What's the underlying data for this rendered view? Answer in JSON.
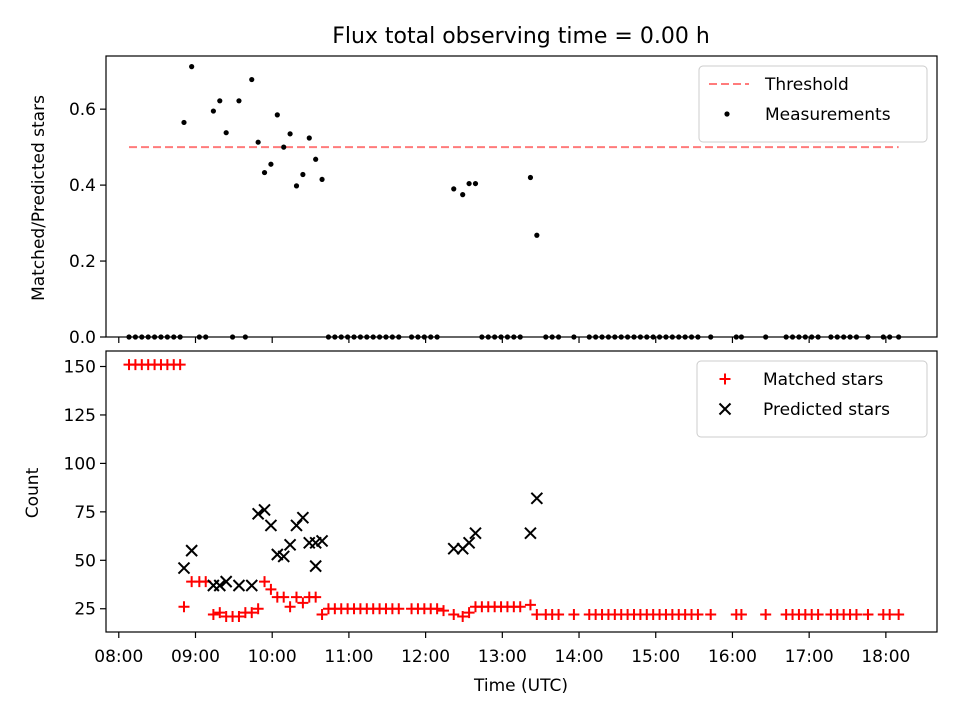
{
  "chart_data": [
    {
      "type": "scatter",
      "title": "Flux total observing time = 0.00 h",
      "xlabel": "",
      "ylabel": "Matched/Predicted stars",
      "x_ticks": [
        "08:00",
        "09:00",
        "10:00",
        "11:00",
        "12:00",
        "13:00",
        "14:00",
        "15:00",
        "16:00",
        "17:00",
        "18:00"
      ],
      "y_ticks": [
        "0.0",
        "0.2",
        "0.4",
        "0.6"
      ],
      "ylim": [
        0,
        0.74
      ],
      "xlim": [
        "07:50",
        "18:40"
      ],
      "grid": false,
      "legend_position": "upper-right",
      "threshold": {
        "name": "Threshold",
        "value": 0.5,
        "x_start": "08:08",
        "x_end": "18:10",
        "color": "#ff7b7b",
        "style": "dashed"
      },
      "series": [
        {
          "name": "Measurements",
          "color": "#000000",
          "marker": "dot",
          "points": [
            [
              "08:51",
              0.565
            ],
            [
              "08:57",
              0.712
            ],
            [
              "09:14",
              0.595
            ],
            [
              "09:19",
              0.622
            ],
            [
              "09:24",
              0.538
            ],
            [
              "09:34",
              0.622
            ],
            [
              "09:44",
              0.678
            ],
            [
              "09:49",
              0.513
            ],
            [
              "09:54",
              0.433
            ],
            [
              "09:59",
              0.455
            ],
            [
              "10:04",
              0.585
            ],
            [
              "10:09",
              0.5
            ],
            [
              "10:14",
              0.535
            ],
            [
              "10:19",
              0.398
            ],
            [
              "10:24",
              0.428
            ],
            [
              "10:29",
              0.524
            ],
            [
              "10:34",
              0.468
            ],
            [
              "10:39",
              0.415
            ],
            [
              "12:22",
              0.39
            ],
            [
              "12:29",
              0.375
            ],
            [
              "12:34",
              0.404
            ],
            [
              "12:39",
              0.404
            ],
            [
              "13:22",
              0.42
            ],
            [
              "13:27",
              0.268
            ],
            [
              "08:08",
              0
            ],
            [
              "08:13",
              0
            ],
            [
              "08:18",
              0
            ],
            [
              "08:23",
              0
            ],
            [
              "08:28",
              0
            ],
            [
              "08:33",
              0
            ],
            [
              "08:38",
              0
            ],
            [
              "08:43",
              0
            ],
            [
              "08:48",
              0
            ],
            [
              "09:03",
              0
            ],
            [
              "09:08",
              0
            ],
            [
              "09:29",
              0
            ],
            [
              "09:39",
              0
            ],
            [
              "10:44",
              0
            ],
            [
              "10:49",
              0
            ],
            [
              "10:54",
              0
            ],
            [
              "10:59",
              0
            ],
            [
              "11:04",
              0
            ],
            [
              "11:09",
              0
            ],
            [
              "11:14",
              0
            ],
            [
              "11:19",
              0
            ],
            [
              "11:24",
              0
            ],
            [
              "11:29",
              0
            ],
            [
              "11:34",
              0
            ],
            [
              "11:39",
              0
            ],
            [
              "11:49",
              0
            ],
            [
              "11:54",
              0
            ],
            [
              "11:59",
              0
            ],
            [
              "12:04",
              0
            ],
            [
              "12:09",
              0
            ],
            [
              "12:44",
              0
            ],
            [
              "12:49",
              0
            ],
            [
              "12:54",
              0
            ],
            [
              "12:59",
              0
            ],
            [
              "13:04",
              0
            ],
            [
              "13:09",
              0
            ],
            [
              "13:14",
              0
            ],
            [
              "13:34",
              0
            ],
            [
              "13:39",
              0
            ],
            [
              "13:44",
              0
            ],
            [
              "13:56",
              0
            ],
            [
              "14:08",
              0
            ],
            [
              "14:13",
              0
            ],
            [
              "14:18",
              0
            ],
            [
              "14:23",
              0
            ],
            [
              "14:28",
              0
            ],
            [
              "14:33",
              0
            ],
            [
              "14:38",
              0
            ],
            [
              "14:43",
              0
            ],
            [
              "14:48",
              0
            ],
            [
              "14:53",
              0
            ],
            [
              "14:58",
              0
            ],
            [
              "15:03",
              0
            ],
            [
              "15:08",
              0
            ],
            [
              "15:13",
              0
            ],
            [
              "15:18",
              0
            ],
            [
              "15:23",
              0
            ],
            [
              "15:28",
              0
            ],
            [
              "15:33",
              0
            ],
            [
              "15:43",
              0
            ],
            [
              "16:03",
              0
            ],
            [
              "16:07",
              0
            ],
            [
              "16:26",
              0
            ],
            [
              "16:42",
              0
            ],
            [
              "16:47",
              0
            ],
            [
              "16:52",
              0
            ],
            [
              "16:57",
              0
            ],
            [
              "17:02",
              0
            ],
            [
              "17:07",
              0
            ],
            [
              "17:17",
              0
            ],
            [
              "17:22",
              0
            ],
            [
              "17:27",
              0
            ],
            [
              "17:32",
              0
            ],
            [
              "17:37",
              0
            ],
            [
              "17:46",
              0
            ],
            [
              "17:58",
              0
            ],
            [
              "18:03",
              0
            ],
            [
              "18:10",
              0
            ]
          ]
        }
      ]
    },
    {
      "type": "scatter",
      "title": "",
      "xlabel": "Time (UTC)",
      "ylabel": "Count",
      "x_ticks": [
        "08:00",
        "09:00",
        "10:00",
        "11:00",
        "12:00",
        "13:00",
        "14:00",
        "15:00",
        "16:00",
        "17:00",
        "18:00"
      ],
      "y_ticks": [
        "25",
        "50",
        "75",
        "100",
        "125",
        "150"
      ],
      "ylim": [
        13,
        158
      ],
      "xlim": [
        "07:50",
        "18:40"
      ],
      "grid": false,
      "legend_position": "upper-right",
      "series": [
        {
          "name": "Matched stars",
          "color": "#ff0000",
          "marker": "plus",
          "points": [
            [
              "08:08",
              151
            ],
            [
              "08:13",
              151
            ],
            [
              "08:18",
              151
            ],
            [
              "08:23",
              151
            ],
            [
              "08:28",
              151
            ],
            [
              "08:33",
              151
            ],
            [
              "08:38",
              151
            ],
            [
              "08:43",
              151
            ],
            [
              "08:48",
              151
            ],
            [
              "08:51",
              26
            ],
            [
              "08:57",
              39
            ],
            [
              "09:03",
              39
            ],
            [
              "09:08",
              39
            ],
            [
              "09:14",
              22
            ],
            [
              "09:19",
              23
            ],
            [
              "09:24",
              21
            ],
            [
              "09:29",
              21
            ],
            [
              "09:34",
              21
            ],
            [
              "09:39",
              23
            ],
            [
              "09:44",
              23
            ],
            [
              "09:49",
              25
            ],
            [
              "09:54",
              39
            ],
            [
              "09:59",
              35
            ],
            [
              "10:04",
              31
            ],
            [
              "10:09",
              31
            ],
            [
              "10:14",
              26
            ],
            [
              "10:19",
              31
            ],
            [
              "10:24",
              28
            ],
            [
              "10:29",
              31
            ],
            [
              "10:34",
              31
            ],
            [
              "10:39",
              22
            ],
            [
              "10:44",
              25
            ],
            [
              "10:49",
              25
            ],
            [
              "10:54",
              25
            ],
            [
              "10:59",
              25
            ],
            [
              "11:04",
              25
            ],
            [
              "11:09",
              25
            ],
            [
              "11:14",
              25
            ],
            [
              "11:19",
              25
            ],
            [
              "11:24",
              25
            ],
            [
              "11:29",
              25
            ],
            [
              "11:34",
              25
            ],
            [
              "11:39",
              25
            ],
            [
              "11:49",
              25
            ],
            [
              "11:54",
              25
            ],
            [
              "11:59",
              25
            ],
            [
              "12:04",
              25
            ],
            [
              "12:09",
              25
            ],
            [
              "12:14",
              24
            ],
            [
              "12:22",
              22
            ],
            [
              "12:29",
              21
            ],
            [
              "12:34",
              23
            ],
            [
              "12:39",
              26
            ],
            [
              "12:44",
              26
            ],
            [
              "12:49",
              26
            ],
            [
              "12:54",
              26
            ],
            [
              "12:59",
              26
            ],
            [
              "13:04",
              26
            ],
            [
              "13:09",
              26
            ],
            [
              "13:14",
              26
            ],
            [
              "13:22",
              27
            ],
            [
              "13:27",
              22
            ],
            [
              "13:34",
              22
            ],
            [
              "13:39",
              22
            ],
            [
              "13:44",
              22
            ],
            [
              "13:56",
              22
            ],
            [
              "14:08",
              22
            ],
            [
              "14:13",
              22
            ],
            [
              "14:18",
              22
            ],
            [
              "14:23",
              22
            ],
            [
              "14:28",
              22
            ],
            [
              "14:33",
              22
            ],
            [
              "14:38",
              22
            ],
            [
              "14:43",
              22
            ],
            [
              "14:48",
              22
            ],
            [
              "14:53",
              22
            ],
            [
              "14:58",
              22
            ],
            [
              "15:03",
              22
            ],
            [
              "15:08",
              22
            ],
            [
              "15:13",
              22
            ],
            [
              "15:18",
              22
            ],
            [
              "15:23",
              22
            ],
            [
              "15:28",
              22
            ],
            [
              "15:33",
              22
            ],
            [
              "15:43",
              22
            ],
            [
              "16:03",
              22
            ],
            [
              "16:07",
              22
            ],
            [
              "16:26",
              22
            ],
            [
              "16:42",
              22
            ],
            [
              "16:47",
              22
            ],
            [
              "16:52",
              22
            ],
            [
              "16:57",
              22
            ],
            [
              "17:02",
              22
            ],
            [
              "17:07",
              22
            ],
            [
              "17:17",
              22
            ],
            [
              "17:22",
              22
            ],
            [
              "17:27",
              22
            ],
            [
              "17:32",
              22
            ],
            [
              "17:37",
              22
            ],
            [
              "17:46",
              22
            ],
            [
              "17:58",
              22
            ],
            [
              "18:03",
              22
            ],
            [
              "18:10",
              22
            ]
          ]
        },
        {
          "name": "Predicted stars",
          "color": "#000000",
          "marker": "x",
          "points": [
            [
              "08:51",
              46
            ],
            [
              "08:57",
              55
            ],
            [
              "09:14",
              37
            ],
            [
              "09:19",
              37
            ],
            [
              "09:24",
              39
            ],
            [
              "09:34",
              37
            ],
            [
              "09:44",
              37
            ],
            [
              "09:49",
              74
            ],
            [
              "09:54",
              76
            ],
            [
              "09:59",
              68
            ],
            [
              "10:04",
              53
            ],
            [
              "10:09",
              52
            ],
            [
              "10:14",
              58
            ],
            [
              "10:19",
              68
            ],
            [
              "10:24",
              72
            ],
            [
              "10:29",
              59
            ],
            [
              "10:34",
              47
            ],
            [
              "10:39",
              60
            ],
            [
              "10:34",
              59
            ],
            [
              "12:22",
              56
            ],
            [
              "12:29",
              56
            ],
            [
              "12:34",
              59
            ],
            [
              "12:39",
              64
            ],
            [
              "13:22",
              64
            ],
            [
              "13:27",
              82
            ]
          ]
        }
      ]
    }
  ]
}
